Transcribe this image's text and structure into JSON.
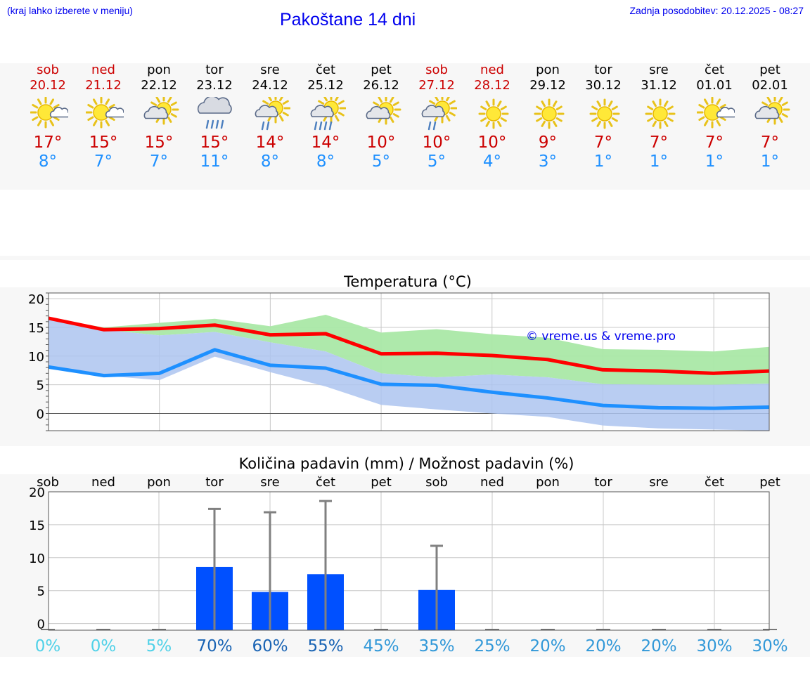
{
  "header": {
    "city_hint": "(kraj lahko izberete v meniju)",
    "title": "Pakoštane 14 dni",
    "updated": "Zadnja posodobitev: 20.12.2025 - 08:27"
  },
  "forecast": [
    {
      "day": "sob",
      "date": "20.12",
      "weekend": true,
      "icon": "sun-cloud-icon",
      "max": "17°",
      "min": "8°"
    },
    {
      "day": "ned",
      "date": "21.12",
      "weekend": true,
      "icon": "sun-cloud-icon",
      "max": "15°",
      "min": "7°"
    },
    {
      "day": "pon",
      "date": "22.12",
      "weekend": false,
      "icon": "partly-cloudy-icon",
      "max": "15°",
      "min": "7°"
    },
    {
      "day": "tor",
      "date": "23.12",
      "weekend": false,
      "icon": "rain-cloud-icon",
      "max": "15°",
      "min": "11°"
    },
    {
      "day": "sre",
      "date": "24.12",
      "weekend": false,
      "icon": "sun-rain-icon",
      "max": "14°",
      "min": "8°"
    },
    {
      "day": "čet",
      "date": "25.12",
      "weekend": false,
      "icon": "sun-heavy-rain-icon",
      "max": "14°",
      "min": "8°"
    },
    {
      "day": "pet",
      "date": "26.12",
      "weekend": false,
      "icon": "partly-cloudy-icon",
      "max": "10°",
      "min": "5°"
    },
    {
      "day": "sob",
      "date": "27.12",
      "weekend": true,
      "icon": "sun-rain-icon",
      "max": "10°",
      "min": "5°"
    },
    {
      "day": "ned",
      "date": "28.12",
      "weekend": true,
      "icon": "sun-icon",
      "max": "10°",
      "min": "4°"
    },
    {
      "day": "pon",
      "date": "29.12",
      "weekend": false,
      "icon": "sun-icon",
      "max": "9°",
      "min": "3°"
    },
    {
      "day": "tor",
      "date": "30.12",
      "weekend": false,
      "icon": "sun-icon",
      "max": "7°",
      "min": "1°"
    },
    {
      "day": "sre",
      "date": "31.12",
      "weekend": false,
      "icon": "sun-icon",
      "max": "7°",
      "min": "1°"
    },
    {
      "day": "čet",
      "date": "01.01",
      "weekend": false,
      "icon": "sun-cloud-icon",
      "max": "7°",
      "min": "1°"
    },
    {
      "day": "pet",
      "date": "02.01",
      "weekend": false,
      "icon": "partly-cloudy-icon",
      "max": "7°",
      "min": "1°"
    }
  ],
  "chart_data": [
    {
      "type": "line",
      "title": "Temperatura (°C)",
      "ylim": [
        -3,
        21
      ],
      "yticks": [
        0,
        5,
        10,
        15,
        20
      ],
      "x": [
        0,
        1,
        2,
        3,
        4,
        5,
        6,
        7,
        8,
        9,
        10,
        11,
        12,
        13
      ],
      "watermark": "© vreme.us & vreme.pro",
      "series": [
        {
          "name": "max",
          "color": "#ff0000",
          "values": [
            16.6,
            14.6,
            14.8,
            15.4,
            13.7,
            13.9,
            10.4,
            10.5,
            10.1,
            9.4,
            7.6,
            7.4,
            7.0,
            7.4
          ]
        },
        {
          "name": "min",
          "color": "#1e90ff",
          "values": [
            8.1,
            6.6,
            7.0,
            11.1,
            8.4,
            7.9,
            5.1,
            4.9,
            3.7,
            2.7,
            1.4,
            1.0,
            0.9,
            1.1
          ]
        }
      ],
      "bands": [
        {
          "name": "max-range",
          "color": "#aae8a6",
          "lower": [
            16.6,
            14.6,
            13.6,
            14.2,
            12.4,
            10.8,
            7.0,
            6.3,
            6.8,
            6.3,
            5.1,
            5.0,
            5.0,
            5.2
          ],
          "upper": [
            16.6,
            15.0,
            15.8,
            16.5,
            15.2,
            17.2,
            14.1,
            14.7,
            13.8,
            13.2,
            11.2,
            11.1,
            10.8,
            11.6
          ]
        },
        {
          "name": "min-range",
          "color": "#adc4f0",
          "lower": [
            8.1,
            6.6,
            5.8,
            9.9,
            7.2,
            4.7,
            1.5,
            0.7,
            0.0,
            -0.6,
            -2.1,
            -2.6,
            -2.8,
            -3.0
          ]
        }
      ]
    },
    {
      "type": "bar",
      "title": "Količina padavin (mm) / Možnost padavin (%)",
      "ylim": [
        -1,
        20
      ],
      "yticks": [
        0,
        5,
        10,
        15,
        20
      ],
      "categories": [
        "sob",
        "ned",
        "pon",
        "tor",
        "sre",
        "čet",
        "pet",
        "sob",
        "ned",
        "pon",
        "tor",
        "sre",
        "čet",
        "pet"
      ],
      "values": [
        0,
        0,
        0,
        8.6,
        4.8,
        7.5,
        0,
        5.1,
        0,
        0,
        0,
        0,
        0,
        0
      ],
      "error_high": [
        0,
        0,
        0,
        17.4,
        16.9,
        18.6,
        0,
        11.8,
        0,
        0,
        0,
        0,
        0,
        0
      ],
      "probability": [
        "0%",
        "0%",
        "5%",
        "70%",
        "60%",
        "55%",
        "45%",
        "35%",
        "25%",
        "20%",
        "20%",
        "20%",
        "30%",
        "30%"
      ],
      "probability_colors": [
        "#4fd1e8",
        "#4fd1e8",
        "#4fd1e8",
        "#1a64b4",
        "#1a64b4",
        "#1a64b4",
        "#3198d8",
        "#3198d8",
        "#3198d8",
        "#3198d8",
        "#3198d8",
        "#3198d8",
        "#3198d8",
        "#3198d8"
      ],
      "bar_color": "#0050ff",
      "error_color": "#808080"
    }
  ]
}
